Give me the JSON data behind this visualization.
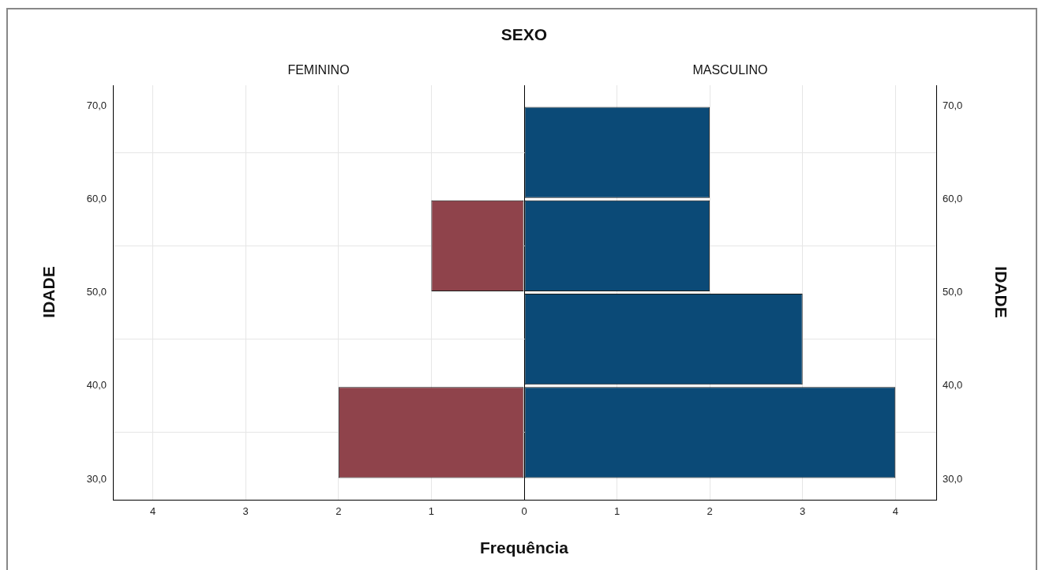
{
  "chart_data": [
    {
      "type": "histogram",
      "orientation": "horizontal",
      "title": "SEXO",
      "subtitle": "FEMININO",
      "ylabel": "IDADE",
      "xlabel": "Frequência",
      "bins": [
        30,
        40,
        50,
        60,
        70
      ],
      "values": [
        2,
        0,
        1,
        0
      ],
      "color": "#8f434b",
      "xlim": [
        4.43,
        0
      ],
      "xticks": [
        4,
        3,
        2,
        1,
        0
      ],
      "ylim": [
        27.8,
        72.2
      ],
      "yticks": [
        {
          "value": 30,
          "label": "30,0"
        },
        {
          "value": 40,
          "label": "40,0"
        },
        {
          "value": 50,
          "label": "50,0"
        },
        {
          "value": 60,
          "label": "60,0"
        },
        {
          "value": 70,
          "label": "70,0"
        }
      ],
      "grid": true
    },
    {
      "type": "histogram",
      "orientation": "horizontal",
      "subtitle": "MASCULINO",
      "ylabel": "IDADE",
      "bins": [
        30,
        40,
        50,
        60,
        70
      ],
      "values": [
        4,
        3,
        2,
        2
      ],
      "color": "#0b4a77",
      "xlim": [
        0,
        4.44
      ],
      "xticks": [
        {
          "value": 0,
          "label": null
        },
        1,
        2,
        3,
        4
      ],
      "ylim": [
        27.8,
        72.2
      ],
      "yticks": [
        {
          "value": 30,
          "label": "30,0"
        },
        {
          "value": 40,
          "label": "40,0"
        },
        {
          "value": 50,
          "label": "50,0"
        },
        {
          "value": 60,
          "label": "60,0"
        },
        {
          "value": 70,
          "label": "70,0"
        }
      ],
      "grid": true
    }
  ]
}
